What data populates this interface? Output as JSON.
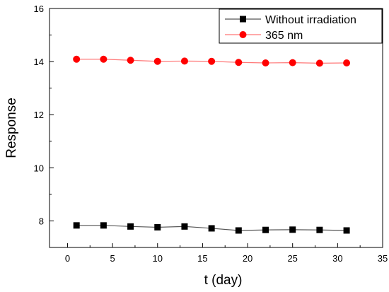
{
  "chart_data": {
    "type": "line",
    "xlabel": "t (day)",
    "ylabel": "Response",
    "xlim": [
      -2,
      35
    ],
    "ylim": [
      7,
      16
    ],
    "xticks": [
      0,
      5,
      10,
      15,
      20,
      25,
      30,
      35
    ],
    "yticks": [
      8,
      10,
      12,
      14,
      16
    ],
    "grid": false,
    "legend_position": "top-right",
    "series": [
      {
        "name": "Without irradiation",
        "marker": "square",
        "color": "#000000",
        "line_color": "#555555",
        "x": [
          1,
          4,
          7,
          10,
          13,
          16,
          19,
          22,
          25,
          28,
          31
        ],
        "y": [
          7.83,
          7.83,
          7.79,
          7.76,
          7.79,
          7.72,
          7.64,
          7.66,
          7.67,
          7.66,
          7.64
        ]
      },
      {
        "name": "365 nm",
        "marker": "circle",
        "color": "#ff0000",
        "line_color": "#ff7777",
        "x": [
          1,
          4,
          7,
          10,
          13,
          16,
          19,
          22,
          25,
          28,
          31
        ],
        "y": [
          14.09,
          14.09,
          14.05,
          14.01,
          14.02,
          14.01,
          13.97,
          13.95,
          13.96,
          13.94,
          13.95
        ]
      }
    ]
  }
}
